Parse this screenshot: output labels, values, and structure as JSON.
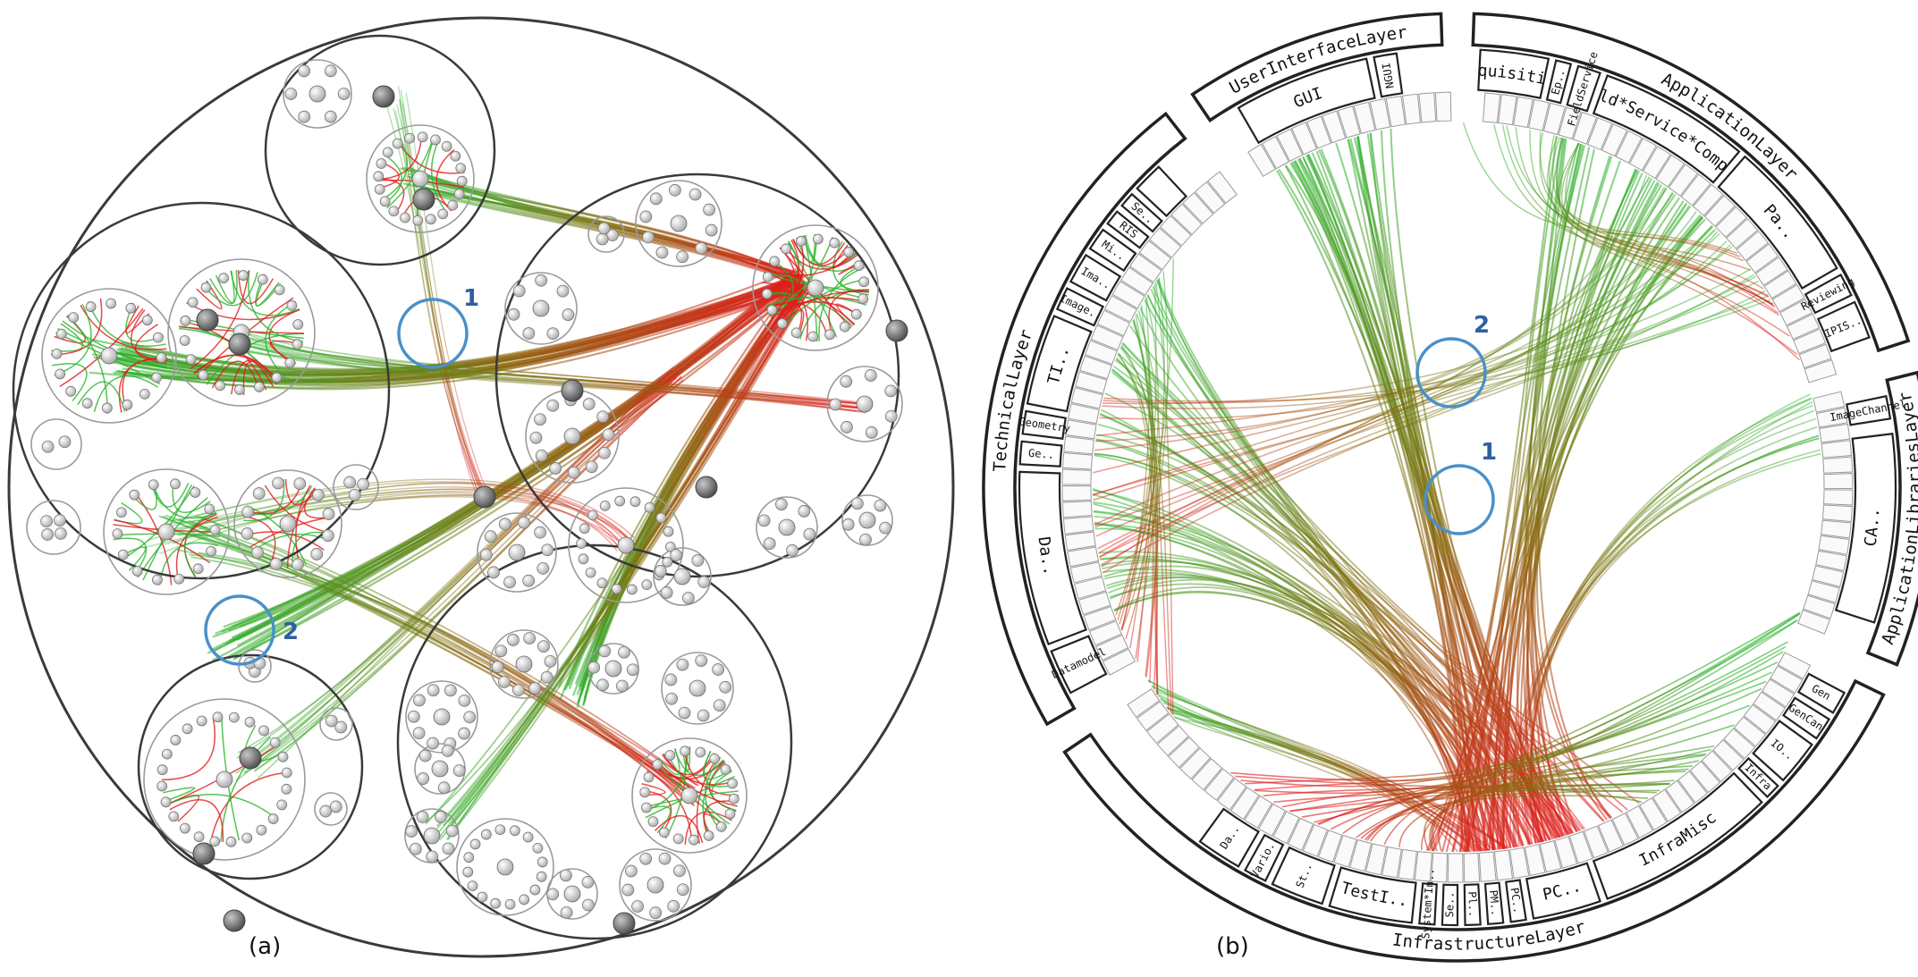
{
  "captions": {
    "left": "(a)",
    "right": "(b)"
  },
  "markers": {
    "left": [
      {
        "label": "1"
      },
      {
        "label": "2"
      }
    ],
    "right": [
      {
        "label": "2"
      },
      {
        "label": "1"
      }
    ]
  },
  "colors": {
    "edge_source": "#2ab12a",
    "edge_target": "#e01b1b",
    "edge_mid": "#8a6a10",
    "container_stroke": "#3a3a3a",
    "leaf_fill": "#f2f2f2",
    "inner_node_fill": "#8c8c8c",
    "marker_circle": "#4a90c8",
    "marker_text": "#2f5fa0"
  },
  "radial_layers": {
    "outer_labels": [
      "UserInterfaceLayer",
      "ApplicationLayer",
      "ApplicationLibrariesLayer",
      "InfrastructureLayer",
      "TechnicalLayer"
    ],
    "mid_labels": [
      "GUI",
      "NGUI",
      "Acquisition",
      "Ep..",
      "FieldService",
      "Field*Service*Compo..",
      "Pa..",
      "Reviewing",
      "IPIS..",
      "ImageChannel",
      "CA..",
      "Gen",
      "GenCan",
      "IO..",
      "Infra",
      "InfraMisc",
      "PC..",
      "PC..",
      "PM..",
      "Pl..",
      "Se..",
      "System*In..",
      "TestI..",
      "St..",
      "Vario..",
      "Da..",
      "Datamodel",
      "Da..",
      "Ge..",
      "Geometry",
      "TI..",
      "Image..",
      "Ima..",
      "Mi..",
      "RIS",
      "Se.."
    ]
  }
}
